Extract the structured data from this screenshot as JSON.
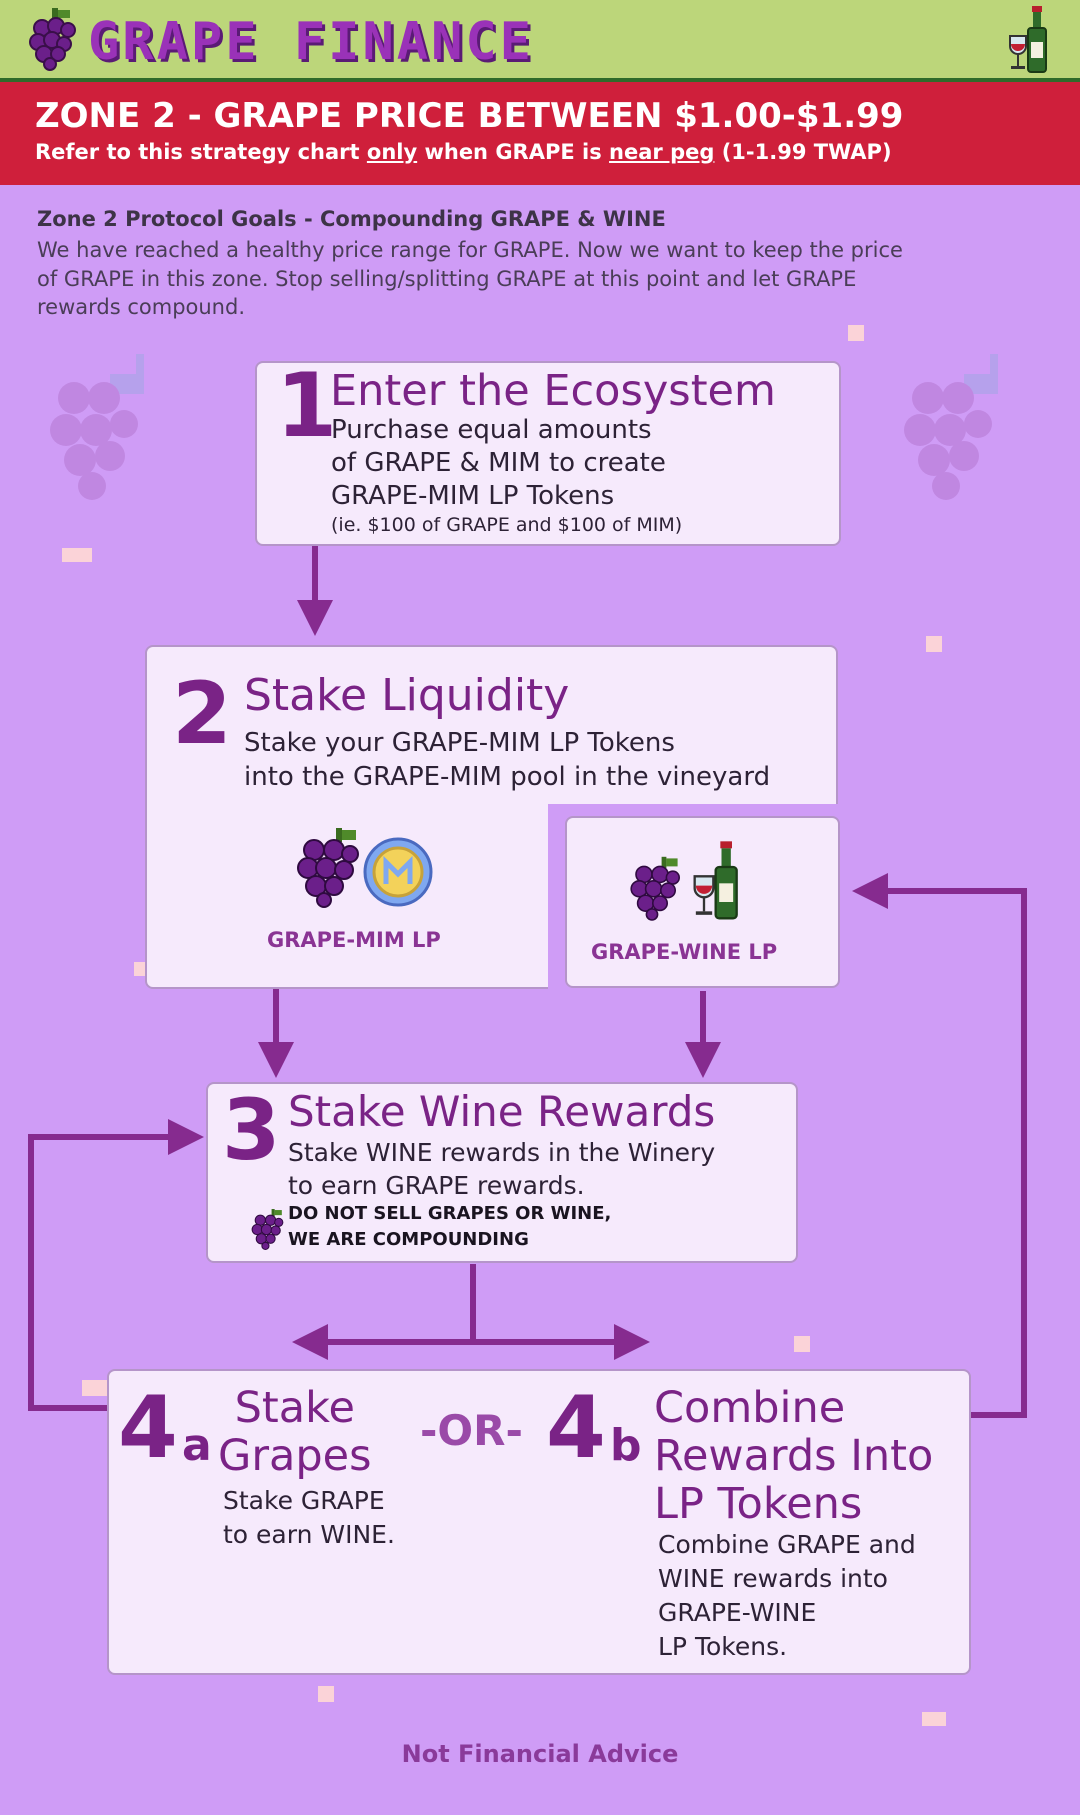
{
  "header": {
    "brand": "GRAPE FINANCE",
    "zone_title": "ZONE 2 -  GRAPE PRICE BETWEEN $1.00-$1.99",
    "zone_sub_parts": [
      "Refer to this strategy chart ",
      "only",
      " when GRAPE is ",
      "near peg",
      " (1-1.99 TWAP)"
    ]
  },
  "goals": {
    "title": "Zone 2 Protocol Goals - Compounding GRAPE & WINE",
    "lines": [
      "We have reached a healthy price range for GRAPE. Now we want to keep the price",
      "of GRAPE in this zone. Stop selling/splitting GRAPE at this point and let GRAPE",
      "rewards compound."
    ]
  },
  "steps": {
    "s1": {
      "number": "1",
      "title": "Enter the Ecosystem",
      "lines": [
        "Purchase equal amounts",
        "of GRAPE & MIM to create",
        "GRAPE-MIM LP Tokens"
      ],
      "note": "(ie. $100 of GRAPE and $100 of MIM)"
    },
    "s2": {
      "number": "2",
      "title": "Stake Liquidity",
      "lines": [
        "Stake your GRAPE-MIM LP Tokens",
        "into the GRAPE-MIM pool in the vineyard"
      ],
      "lp_left": "GRAPE-MIM LP",
      "lp_right": "GRAPE-WINE LP"
    },
    "s3": {
      "number": "3",
      "title": "Stake Wine Rewards",
      "lines": [
        "Stake WINE rewards in the Winery",
        "to earn GRAPE rewards."
      ],
      "warning": [
        "DO NOT SELL GRAPES OR WINE,",
        "WE ARE COMPOUNDING"
      ]
    },
    "s4a": {
      "number": "4",
      "suffix": "a",
      "title": [
        "Stake",
        "Grapes"
      ],
      "lines": [
        "Stake GRAPE",
        "to earn WINE."
      ]
    },
    "or": "-OR-",
    "s4b": {
      "number": "4",
      "suffix": "b",
      "title": [
        "Combine",
        "Rewards Into",
        "LP Tokens"
      ],
      "lines": [
        "Combine GRAPE and",
        "WINE rewards into",
        "GRAPE-WINE",
        "LP Tokens."
      ]
    }
  },
  "footer": {
    "disclaimer": "Not Financial Advice"
  },
  "colors": {
    "background": "#cf9cf6",
    "header_bar": "#bcd67a",
    "zone_banner": "#cf1f3b",
    "accent_purple": "#7a2386",
    "arrow": "#862b8f",
    "box_fill": "#f6eafc"
  },
  "icons": [
    "grape-icon",
    "wine-bottle-icon",
    "mim-coin-icon",
    "wine-glass-icon"
  ]
}
